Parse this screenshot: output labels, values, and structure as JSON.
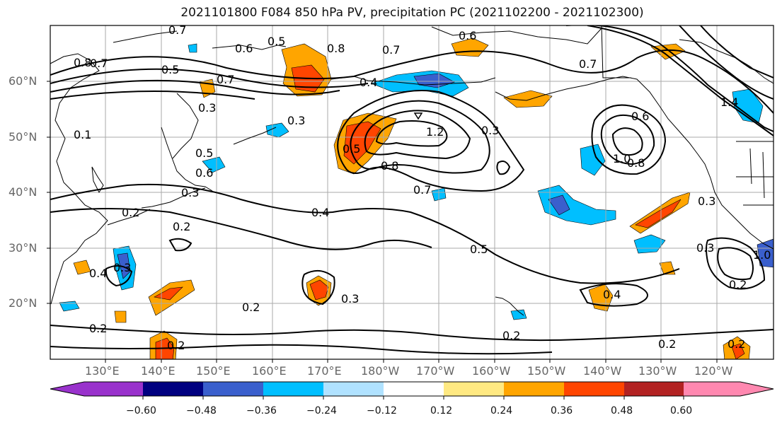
{
  "title": "2021101800 F084 850 hPa PV, precipitation PC (2021102200 - 2021102300)",
  "lat_labels": [
    "60°N",
    "50°N",
    "40°N",
    "30°N",
    "20°N"
  ],
  "lon_labels": [
    "130°E",
    "140°E",
    "150°E",
    "160°E",
    "170°E",
    "180°W",
    "170°W",
    "160°W",
    "150°W",
    "140°W",
    "130°W",
    "120°W"
  ],
  "contour_labels": [
    "0.7",
    "0.5",
    "0.6",
    "0.8",
    "0.7",
    "0.6",
    "0.7",
    "0.8",
    "0.5",
    "0.7",
    "0.4",
    "0.7",
    "0.3",
    "0.3",
    "0.5",
    "0.6",
    "0.3",
    "0.2",
    "0.4",
    "0.3",
    "0.2",
    "0.4",
    "0.5",
    "0.8",
    "0.7",
    "1.2",
    "0.3",
    "0.5",
    "0.2",
    "0.3",
    "0.2",
    "0.2",
    "0.4",
    "0.2",
    "0.2",
    "1.0",
    "0.8",
    "0.6",
    "0.3",
    "0.3",
    "0.1",
    "1.4",
    "0.2",
    "0.2",
    "1.0"
  ],
  "colorbar": {
    "colors": [
      "#9932cc",
      "#000080",
      "#3a5fcd",
      "#00bfff",
      "#b0e2ff",
      "#ffffff",
      "#ffe982",
      "#ffa500",
      "#ff4500",
      "#b22222",
      "#ff88b0"
    ],
    "ticks": [
      "−0.60",
      "−0.48",
      "−0.36",
      "−0.24",
      "−0.12",
      "0.12",
      "0.24",
      "0.36",
      "0.48",
      "0.60"
    ]
  }
}
